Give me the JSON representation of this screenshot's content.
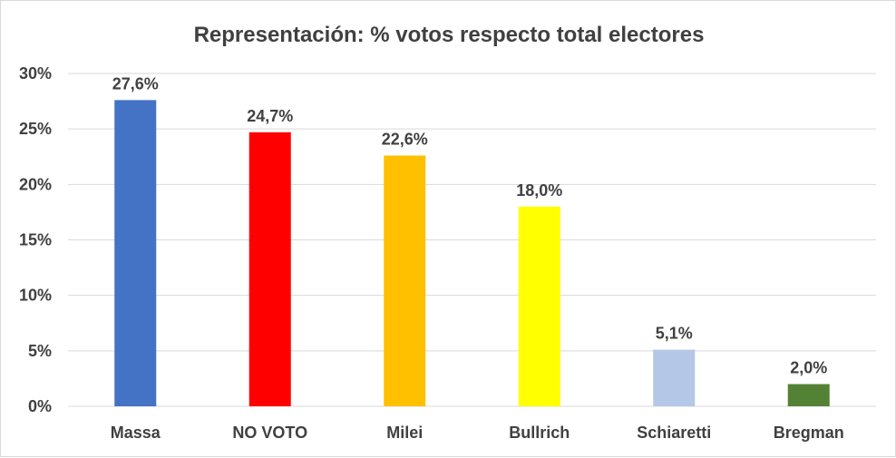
{
  "chart_data": {
    "type": "bar",
    "title": "Representación: % votos respecto total electores",
    "categories": [
      "Massa",
      "NO VOTO",
      "Milei",
      "Bullrich",
      "Schiaretti",
      "Bregman"
    ],
    "values": [
      27.6,
      24.7,
      22.6,
      18.0,
      5.1,
      2.0
    ],
    "data_labels": [
      "27,6%",
      "24,7%",
      "22,6%",
      "18,0%",
      "5,1%",
      "2,0%"
    ],
    "colors": [
      "#4472C4",
      "#FF0000",
      "#FFC000",
      "#FFFF00",
      "#B4C7E7",
      "#548235"
    ],
    "yticks": [
      0,
      5,
      10,
      15,
      20,
      25,
      30
    ],
    "ytick_labels": [
      "0%",
      "5%",
      "10%",
      "15%",
      "20%",
      "25%",
      "30%"
    ],
    "ylim": [
      0,
      30
    ],
    "xlabel": "",
    "ylabel": "",
    "grid": true,
    "legend": "none"
  }
}
